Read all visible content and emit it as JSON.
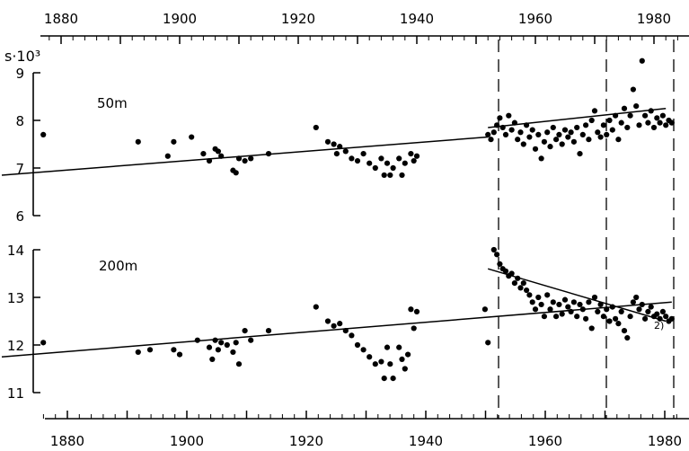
{
  "chart_data": [
    {
      "type": "scatter",
      "panel_label": "50m",
      "ylabel": "s·10³",
      "ylim": [
        6,
        9
      ],
      "yticks": [
        "6",
        "7",
        "8",
        "9"
      ],
      "xlim": [
        1870,
        1983
      ],
      "xticks": [
        "1880",
        "1900",
        "1920",
        "1940",
        "1960",
        "1980"
      ],
      "series": [
        {
          "points": [
            [
              1877,
              7.7
            ],
            [
              1893,
              7.55
            ],
            [
              1898,
              7.25
            ],
            [
              1899,
              7.55
            ],
            [
              1902,
              7.65
            ],
            [
              1904,
              7.3
            ],
            [
              1905,
              7.15
            ],
            [
              1906,
              7.4
            ],
            [
              1906.5,
              7.35
            ],
            [
              1907,
              7.25
            ],
            [
              1909,
              6.95
            ],
            [
              1909.5,
              6.9
            ],
            [
              1910,
              7.2
            ],
            [
              1911,
              7.15
            ],
            [
              1912,
              7.2
            ],
            [
              1915,
              7.3
            ],
            [
              1923,
              7.85
            ],
            [
              1925,
              7.55
            ],
            [
              1926,
              7.5
            ],
            [
              1926.5,
              7.3
            ],
            [
              1927,
              7.45
            ],
            [
              1928,
              7.35
            ],
            [
              1929,
              7.2
            ],
            [
              1930,
              7.15
            ],
            [
              1931,
              7.3
            ],
            [
              1932,
              7.1
            ],
            [
              1933,
              7.0
            ],
            [
              1934,
              7.2
            ],
            [
              1934.5,
              6.85
            ],
            [
              1935,
              7.1
            ],
            [
              1935.5,
              6.85
            ],
            [
              1936,
              7.0
            ],
            [
              1937,
              7.2
            ],
            [
              1937.5,
              6.85
            ],
            [
              1938,
              7.1
            ],
            [
              1939,
              7.3
            ],
            [
              1939.5,
              7.15
            ],
            [
              1940,
              7.25
            ],
            [
              1952,
              7.7
            ],
            [
              1952.5,
              7.6
            ],
            [
              1953,
              7.75
            ],
            [
              1953.5,
              7.9
            ],
            [
              1954,
              8.05
            ],
            [
              1954.5,
              7.85
            ],
            [
              1955,
              7.7
            ],
            [
              1955.5,
              8.1
            ],
            [
              1956,
              7.8
            ],
            [
              1956.5,
              7.95
            ],
            [
              1957,
              7.6
            ],
            [
              1957.5,
              7.75
            ],
            [
              1958,
              7.5
            ],
            [
              1958.5,
              7.9
            ],
            [
              1959,
              7.65
            ],
            [
              1959.5,
              7.8
            ],
            [
              1960,
              7.4
            ],
            [
              1960.5,
              7.7
            ],
            [
              1961,
              7.2
            ],
            [
              1961.5,
              7.55
            ],
            [
              1962,
              7.75
            ],
            [
              1962.5,
              7.45
            ],
            [
              1963,
              7.85
            ],
            [
              1963.5,
              7.6
            ],
            [
              1964,
              7.7
            ],
            [
              1964.5,
              7.5
            ],
            [
              1965,
              7.8
            ],
            [
              1965.5,
              7.65
            ],
            [
              1966,
              7.75
            ],
            [
              1966.5,
              7.55
            ],
            [
              1967,
              7.85
            ],
            [
              1967.5,
              7.3
            ],
            [
              1968,
              7.7
            ],
            [
              1968.5,
              7.9
            ],
            [
              1969,
              7.6
            ],
            [
              1969.5,
              8.0
            ],
            [
              1970,
              8.2
            ],
            [
              1970.5,
              7.75
            ],
            [
              1971,
              7.65
            ],
            [
              1971.5,
              7.9
            ],
            [
              1972,
              7.7
            ],
            [
              1972.5,
              8.0
            ],
            [
              1973,
              7.8
            ],
            [
              1973.5,
              8.1
            ],
            [
              1974,
              7.6
            ],
            [
              1974.5,
              7.95
            ],
            [
              1975,
              8.25
            ],
            [
              1975.5,
              7.85
            ],
            [
              1976,
              8.1
            ],
            [
              1976.5,
              8.65
            ],
            [
              1977,
              8.3
            ],
            [
              1977.5,
              7.9
            ],
            [
              1978,
              9.25
            ],
            [
              1978.5,
              8.1
            ],
            [
              1979,
              7.95
            ],
            [
              1979.5,
              8.2
            ],
            [
              1980,
              7.85
            ],
            [
              1980.5,
              8.05
            ],
            [
              1981,
              7.95
            ],
            [
              1981.5,
              8.1
            ],
            [
              1982,
              7.9
            ],
            [
              1982.5,
              8.0
            ],
            [
              1983,
              7.95
            ]
          ]
        }
      ],
      "trend_lines": [
        {
          "x": [
            1870,
            1952
          ],
          "y": [
            6.85,
            7.65
          ]
        },
        {
          "x": [
            1952,
            1982
          ],
          "y": [
            7.85,
            8.25
          ]
        }
      ]
    },
    {
      "type": "scatter",
      "panel_label": "200m",
      "annotation": "2)",
      "ylim": [
        11,
        14
      ],
      "yticks": [
        "11",
        "12",
        "13",
        "14"
      ],
      "xlim": [
        1870,
        1983
      ],
      "xticks": [
        "1880",
        "1900",
        "1920",
        "1940",
        "1960",
        "1980"
      ],
      "series": [
        {
          "points": [
            [
              1877,
              12.05
            ],
            [
              1893,
              11.85
            ],
            [
              1895,
              11.9
            ],
            [
              1899,
              11.9
            ],
            [
              1900,
              11.8
            ],
            [
              1903,
              12.1
            ],
            [
              1905,
              11.95
            ],
            [
              1905.5,
              11.7
            ],
            [
              1906,
              12.1
            ],
            [
              1906.5,
              11.9
            ],
            [
              1907,
              12.05
            ],
            [
              1908,
              12.0
            ],
            [
              1909,
              11.85
            ],
            [
              1909.5,
              12.05
            ],
            [
              1910,
              11.6
            ],
            [
              1911,
              12.3
            ],
            [
              1912,
              12.1
            ],
            [
              1915,
              12.3
            ],
            [
              1923,
              12.8
            ],
            [
              1925,
              12.5
            ],
            [
              1926,
              12.4
            ],
            [
              1927,
              12.45
            ],
            [
              1928,
              12.3
            ],
            [
              1929,
              12.2
            ],
            [
              1930,
              12.0
            ],
            [
              1931,
              11.9
            ],
            [
              1932,
              11.75
            ],
            [
              1933,
              11.6
            ],
            [
              1934,
              11.65
            ],
            [
              1934.5,
              11.3
            ],
            [
              1935,
              11.95
            ],
            [
              1935.5,
              11.6
            ],
            [
              1936,
              11.3
            ],
            [
              1937,
              11.95
            ],
            [
              1937.5,
              11.7
            ],
            [
              1938,
              11.5
            ],
            [
              1938.5,
              11.8
            ],
            [
              1939,
              12.75
            ],
            [
              1939.5,
              12.35
            ],
            [
              1940,
              12.7
            ],
            [
              1951.5,
              12.75
            ],
            [
              1952,
              12.05
            ],
            [
              1953,
              14.0
            ],
            [
              1953.5,
              13.9
            ],
            [
              1954,
              13.7
            ],
            [
              1954.5,
              13.6
            ],
            [
              1955,
              13.55
            ],
            [
              1955.5,
              13.45
            ],
            [
              1956,
              13.5
            ],
            [
              1956.5,
              13.3
            ],
            [
              1957,
              13.4
            ],
            [
              1957.5,
              13.2
            ],
            [
              1958,
              13.3
            ],
            [
              1958.5,
              13.15
            ],
            [
              1959,
              13.05
            ],
            [
              1959.5,
              12.9
            ],
            [
              1960,
              12.75
            ],
            [
              1960.5,
              13.0
            ],
            [
              1961,
              12.85
            ],
            [
              1961.5,
              12.6
            ],
            [
              1962,
              13.05
            ],
            [
              1962.5,
              12.75
            ],
            [
              1963,
              12.9
            ],
            [
              1963.5,
              12.6
            ],
            [
              1964,
              12.85
            ],
            [
              1964.5,
              12.65
            ],
            [
              1965,
              12.95
            ],
            [
              1965.5,
              12.8
            ],
            [
              1966,
              12.7
            ],
            [
              1966.5,
              12.9
            ],
            [
              1967,
              12.6
            ],
            [
              1967.5,
              12.85
            ],
            [
              1968,
              12.75
            ],
            [
              1968.5,
              12.55
            ],
            [
              1969,
              12.9
            ],
            [
              1969.5,
              12.35
            ],
            [
              1970,
              13.0
            ],
            [
              1970.5,
              12.7
            ],
            [
              1971,
              12.85
            ],
            [
              1971.5,
              12.6
            ],
            [
              1972,
              12.75
            ],
            [
              1972.5,
              12.5
            ],
            [
              1973,
              12.8
            ],
            [
              1973.5,
              12.55
            ],
            [
              1974,
              12.45
            ],
            [
              1974.5,
              12.7
            ],
            [
              1975,
              12.3
            ],
            [
              1975.5,
              12.15
            ],
            [
              1976,
              12.6
            ],
            [
              1976.5,
              12.9
            ],
            [
              1977,
              13.0
            ],
            [
              1977.5,
              12.75
            ],
            [
              1978,
              12.85
            ],
            [
              1978.5,
              12.55
            ],
            [
              1979,
              12.7
            ],
            [
              1979.5,
              12.8
            ],
            [
              1980,
              12.6
            ],
            [
              1980.5,
              12.65
            ],
            [
              1981,
              12.55
            ],
            [
              1981.5,
              12.7
            ],
            [
              1982,
              12.6
            ],
            [
              1982.5,
              12.5
            ],
            [
              1983,
              12.55
            ]
          ]
        }
      ],
      "trend_lines": [
        {
          "x": [
            1870,
            1983
          ],
          "y": [
            11.75,
            12.9
          ]
        },
        {
          "x": [
            1952,
            1982
          ],
          "y": [
            13.6,
            12.5
          ]
        }
      ]
    }
  ],
  "reference_years": [
    1952,
    1970,
    1981
  ],
  "style": {
    "ink": "#000000",
    "background": "#ffffff"
  }
}
